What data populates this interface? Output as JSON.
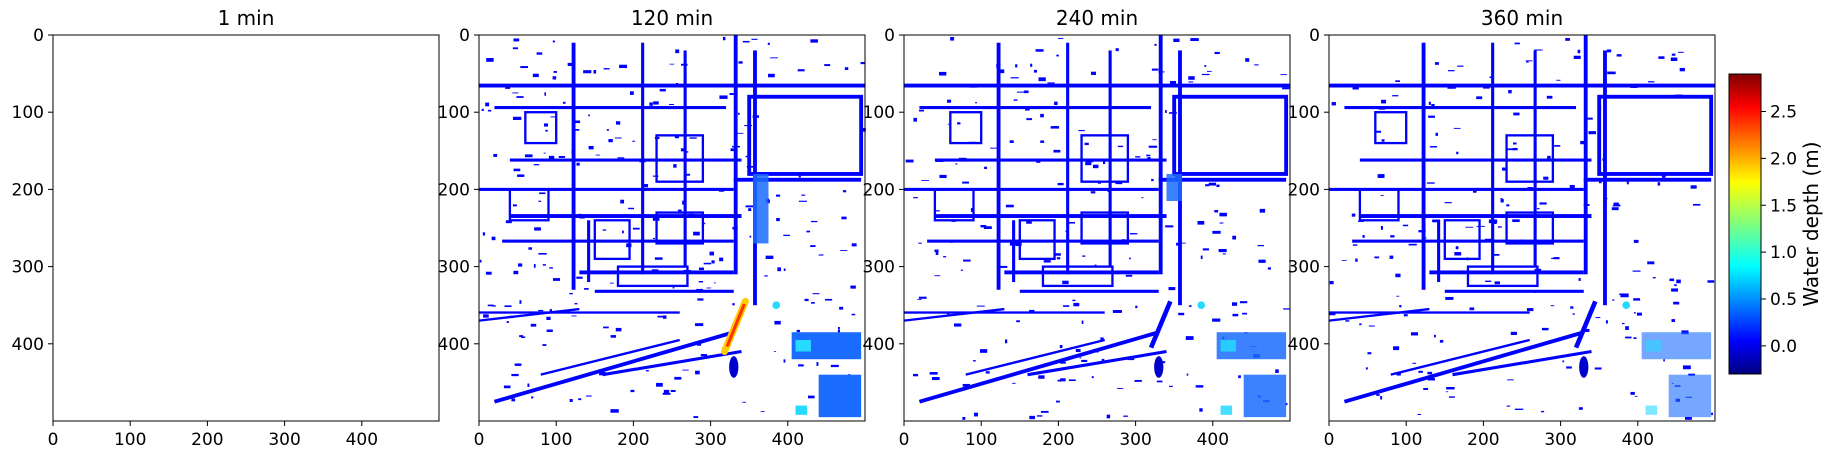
{
  "chart_data": {
    "type": "heatmap",
    "panels": [
      {
        "title": "1 min",
        "xlim": [
          0,
          500
        ],
        "ylim": [
          500,
          0
        ],
        "flood": "none"
      },
      {
        "title": "120 min",
        "xlim": [
          0,
          500
        ],
        "ylim": [
          500,
          0
        ],
        "flood": "high"
      },
      {
        "title": "240 min",
        "xlim": [
          0,
          500
        ],
        "ylim": [
          500,
          0
        ],
        "flood": "medium"
      },
      {
        "title": "360 min",
        "xlim": [
          0,
          500
        ],
        "ylim": [
          500,
          0
        ],
        "flood": "low"
      }
    ],
    "x_ticks": [
      0,
      100,
      200,
      300,
      400
    ],
    "y_ticks": [
      0,
      100,
      200,
      300,
      400
    ],
    "colorbar": {
      "label": "Water depth (m)",
      "range": [
        -0.3,
        2.9
      ],
      "ticks": [
        "0.0",
        "0.5",
        "1.0",
        "1.5",
        "2.0",
        "2.5"
      ],
      "tick_values": [
        0.0,
        0.5,
        1.0,
        1.5,
        2.0,
        2.5
      ],
      "colormap": "jet"
    },
    "colors": {
      "water_shallow": "#0000ff",
      "water_deep": "#ff2200",
      "background": "#ffffff"
    }
  }
}
